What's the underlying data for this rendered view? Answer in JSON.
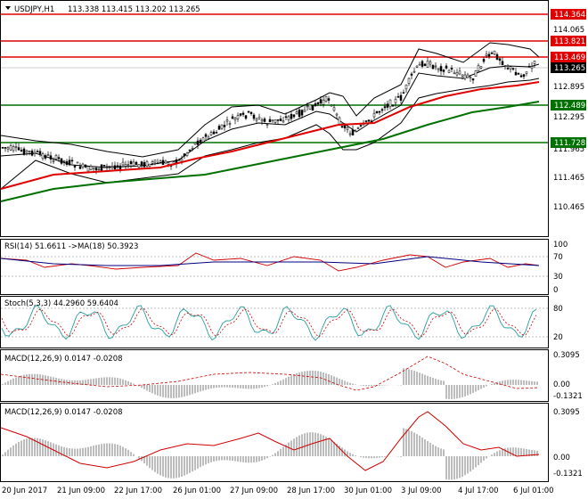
{
  "header": {
    "symbol": "USDJPY,H1",
    "ohlc": "113.338 113.415 113.202 113.265"
  },
  "main_axis": {
    "ticks": [
      "114.065",
      "113.183",
      "112.895",
      "112.295",
      "111.965",
      "111.465",
      "110.465"
    ],
    "price_tags": [
      {
        "text": "114.364",
        "color": "#e00000"
      },
      {
        "text": "113.821",
        "color": "#e00000"
      },
      {
        "text": "113.469",
        "color": "#e00000"
      },
      {
        "text": "113.265",
        "color": "#000000"
      },
      {
        "text": "112.489",
        "color": "#007000"
      },
      {
        "text": "111.728",
        "color": "#007000"
      }
    ]
  },
  "rsi": {
    "label": "RSI(14) 51.6611 ->MA(18) 50.3923",
    "ticks": [
      "100",
      "70",
      "30",
      "0"
    ]
  },
  "stoch": {
    "label": "Stoch(5,3,3) 44.2960 59.6404",
    "ticks": [
      "80",
      "20"
    ]
  },
  "macd1": {
    "label": "MACD(12,26,9) 0.0147 -0.0208",
    "ticks": [
      "0.3095",
      "0.00",
      "-0.1321"
    ]
  },
  "macd2": {
    "label": "MACD(12,26,9) 0.0147 -0.0208",
    "ticks": [
      "0.3095",
      "0.00",
      "-0.1321"
    ]
  },
  "time_axis": [
    "20 Jun 2017",
    "21 Jun 09:00",
    "22 Jun 17:00",
    "26 Jun 01:00",
    "27 Jun 09:00",
    "28 Jun 17:00",
    "30 Jun 01:00",
    "3 Jul 09:00",
    "4 Jul 17:00",
    "6 Jul 01:00"
  ],
  "colors": {
    "resistance": "#e00000",
    "support": "#007000",
    "ma_fast": "#e00000",
    "ma_slow": "#007000",
    "bands": "#000000"
  }
}
